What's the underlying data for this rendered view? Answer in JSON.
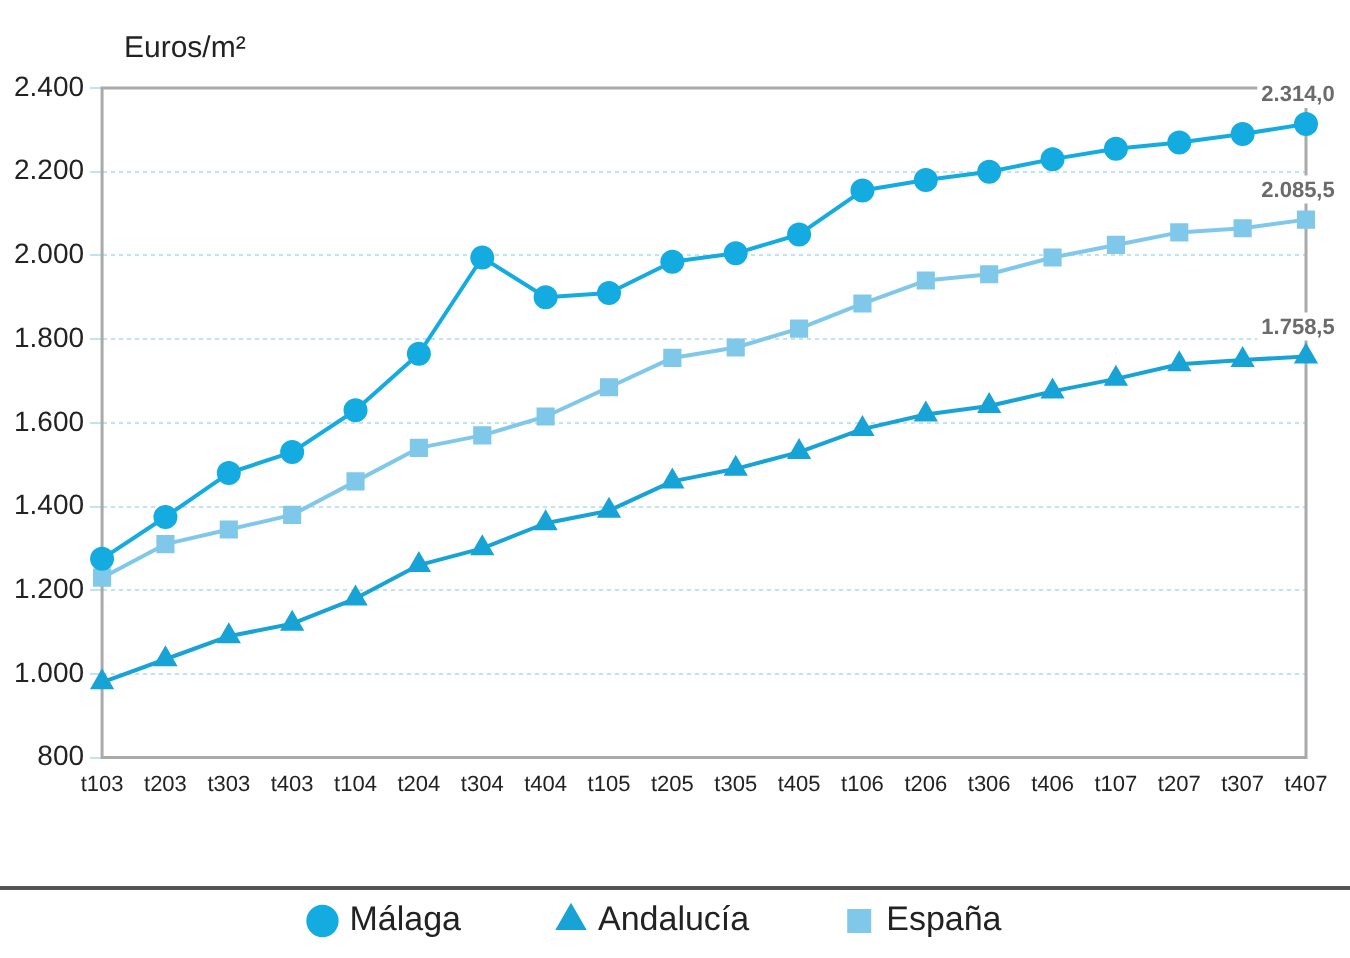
{
  "chart_data": {
    "type": "line",
    "ylabel": "Euros/m²",
    "categories": [
      "t103",
      "t203",
      "t303",
      "t403",
      "t104",
      "t204",
      "t304",
      "t404",
      "t105",
      "t205",
      "t305",
      "t405",
      "t106",
      "t206",
      "t306",
      "t406",
      "t107",
      "t207",
      "t307",
      "t407"
    ],
    "series": [
      {
        "name": "Málaga",
        "color": "#14ace0",
        "marker": "circle",
        "values": [
          1275,
          1375,
          1480,
          1530,
          1630,
          1765,
          1995,
          1900,
          1910,
          1985,
          2005,
          2050,
          2155,
          2180,
          2200,
          2230,
          2255,
          2270,
          2290,
          2314
        ],
        "value_labels": [
          null,
          null,
          null,
          null,
          null,
          null,
          null,
          null,
          null,
          null,
          null,
          null,
          null,
          null,
          null,
          null,
          null,
          null,
          null,
          "2.314,0"
        ]
      },
      {
        "name": "Andalucía",
        "color": "#17a3d6",
        "marker": "triangle",
        "values": [
          980,
          1035,
          1090,
          1120,
          1180,
          1260,
          1300,
          1360,
          1390,
          1460,
          1490,
          1530,
          1585,
          1620,
          1640,
          1675,
          1705,
          1740,
          1750,
          1758.5
        ],
        "value_labels": [
          null,
          null,
          null,
          null,
          null,
          null,
          null,
          null,
          null,
          null,
          null,
          null,
          null,
          null,
          null,
          null,
          null,
          null,
          null,
          "1.758,5"
        ]
      },
      {
        "name": "España",
        "color": "#80c8ea",
        "marker": "square",
        "values": [
          1230,
          1310,
          1345,
          1380,
          1460,
          1540,
          1570,
          1615,
          1685,
          1755,
          1780,
          1825,
          1885,
          1940,
          1955,
          1995,
          2025,
          2055,
          2065,
          2085.5
        ],
        "value_labels": [
          null,
          null,
          null,
          null,
          null,
          null,
          null,
          null,
          null,
          null,
          null,
          null,
          null,
          null,
          null,
          null,
          null,
          null,
          null,
          "2.085,5"
        ]
      }
    ],
    "ylim": [
      800,
      2400
    ],
    "yticks": [
      {
        "value": 800,
        "label": "800"
      },
      {
        "value": 1000,
        "label": "1.000"
      },
      {
        "value": 1200,
        "label": "1.200"
      },
      {
        "value": 1400,
        "label": "1.400"
      },
      {
        "value": 1600,
        "label": "1.600"
      },
      {
        "value": 1800,
        "label": "1.800"
      },
      {
        "value": 2000,
        "label": "2.000"
      },
      {
        "value": 2200,
        "label": "2.200"
      },
      {
        "value": 2400,
        "label": "2.400"
      }
    ],
    "grid": "y",
    "legend": "bottom",
    "line_style": "solid"
  }
}
